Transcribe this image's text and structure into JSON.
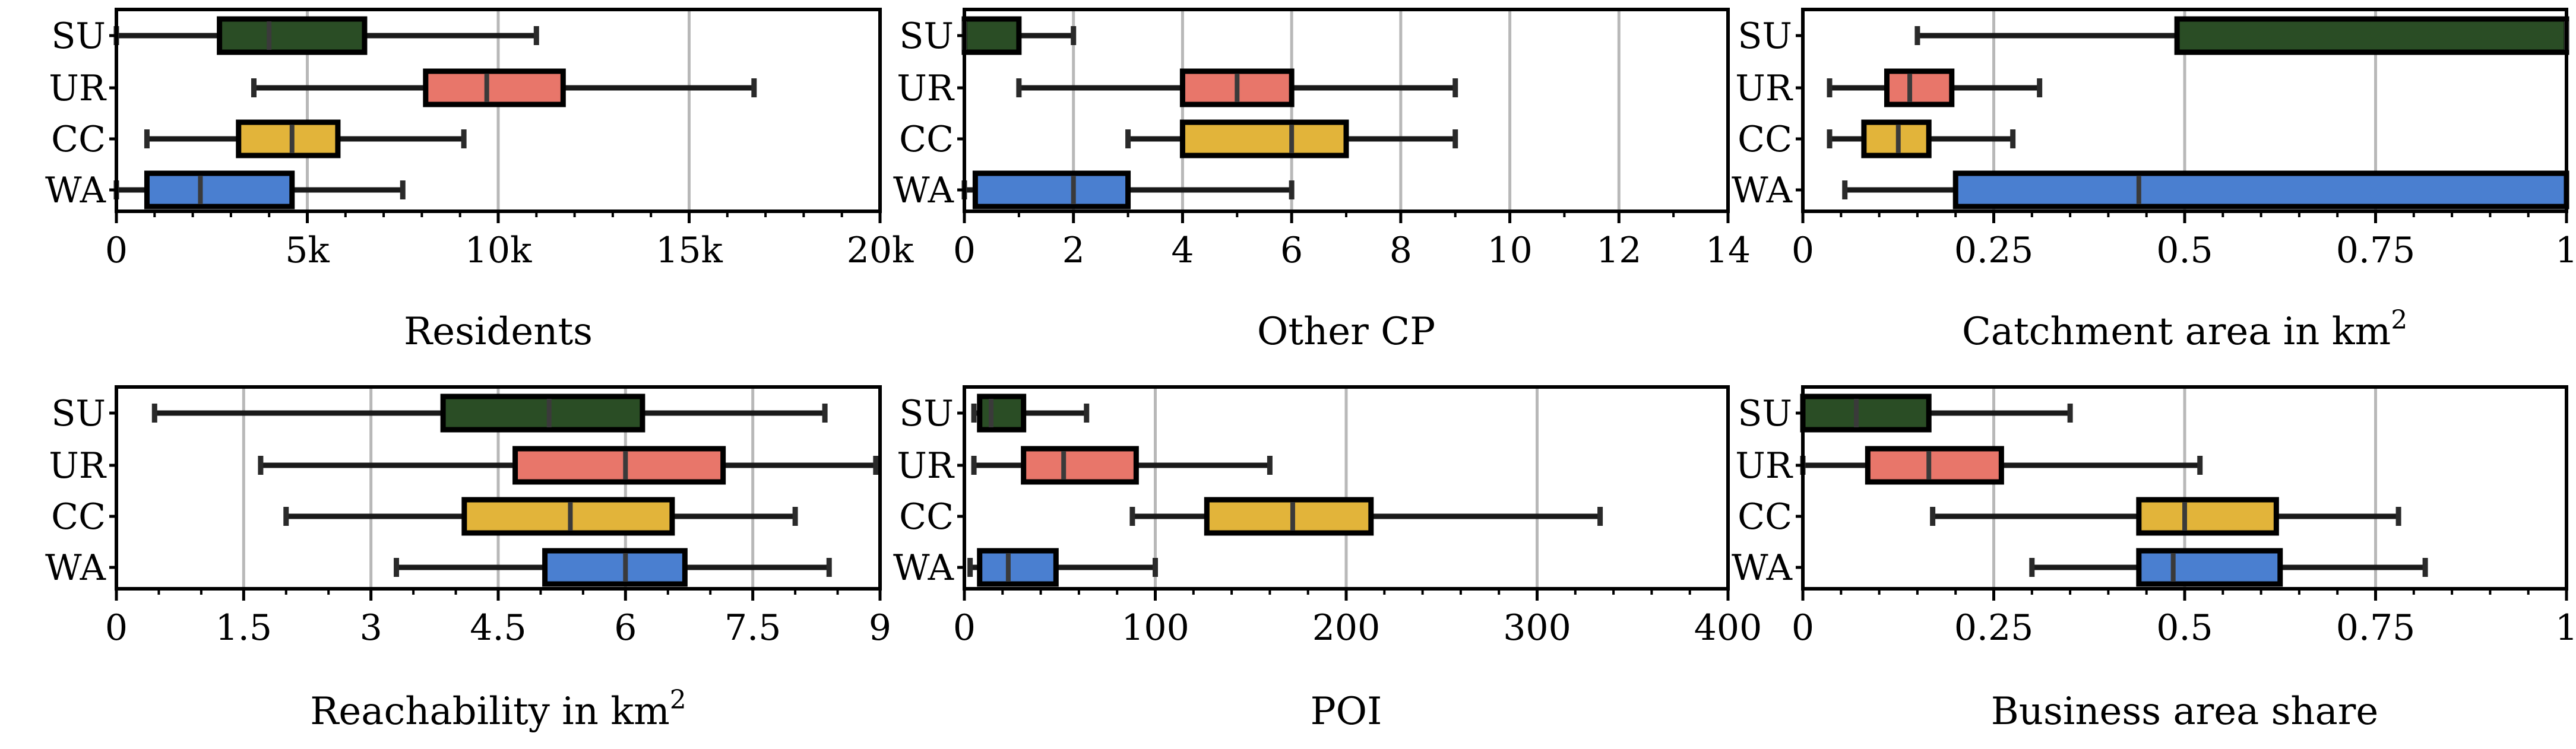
{
  "chart_data": [
    {
      "type": "boxplot",
      "xlabel": "Residents",
      "xlim": [
        0,
        20000
      ],
      "ticks": [
        0,
        5000,
        10000,
        15000,
        20000
      ],
      "tick_labels": [
        "0",
        "5k",
        "10k",
        "15k",
        "20k"
      ],
      "minor_step": 1000,
      "grid": true,
      "categories": [
        "SU",
        "UR",
        "CC",
        "WA"
      ],
      "boxes": [
        {
          "name": "SU",
          "whisker_low": 0,
          "q1": 2700,
          "median": 4000,
          "q3": 6500,
          "whisker_high": 11000
        },
        {
          "name": "UR",
          "whisker_low": 3600,
          "q1": 8100,
          "median": 9700,
          "q3": 11700,
          "whisker_high": 16700
        },
        {
          "name": "CC",
          "whisker_low": 800,
          "q1": 3200,
          "median": 4600,
          "q3": 5800,
          "whisker_high": 9100
        },
        {
          "name": "WA",
          "whisker_low": 0,
          "q1": 800,
          "median": 2200,
          "q3": 4600,
          "whisker_high": 7500
        }
      ]
    },
    {
      "type": "boxplot",
      "xlabel": "Other CP",
      "xlim": [
        0,
        14
      ],
      "ticks": [
        0,
        2,
        4,
        6,
        8,
        10,
        12,
        14
      ],
      "tick_labels": [
        "0",
        "2",
        "4",
        "6",
        "8",
        "10",
        "12",
        "14"
      ],
      "minor_step": 1,
      "grid": true,
      "categories": [
        "SU",
        "UR",
        "CC",
        "WA"
      ],
      "boxes": [
        {
          "name": "SU",
          "whisker_low": 0,
          "q1": 0,
          "median": 0,
          "q3": 1,
          "whisker_high": 2
        },
        {
          "name": "UR",
          "whisker_low": 1,
          "q1": 4,
          "median": 5,
          "q3": 6,
          "whisker_high": 9
        },
        {
          "name": "CC",
          "whisker_low": 3,
          "q1": 4,
          "median": 6,
          "q3": 7,
          "whisker_high": 9
        },
        {
          "name": "WA",
          "whisker_low": 0,
          "q1": 0.2,
          "median": 2,
          "q3": 3,
          "whisker_high": 6
        }
      ]
    },
    {
      "type": "boxplot",
      "xlabel": "Catchment area in km",
      "xlabel_sup": "2",
      "xlim": [
        0,
        1
      ],
      "ticks": [
        0,
        0.25,
        0.5,
        0.75,
        1
      ],
      "tick_labels": [
        "0",
        "0.25",
        "0.5",
        "0.75",
        "1"
      ],
      "minor_step": 0.05,
      "grid": true,
      "categories": [
        "SU",
        "UR",
        "CC",
        "WA"
      ],
      "boxes": [
        {
          "name": "SU",
          "whisker_low": 0.15,
          "q1": 0.49,
          "median": 1.0,
          "q3": 1.0,
          "whisker_high": 1.0
        },
        {
          "name": "UR",
          "whisker_low": 0.035,
          "q1": 0.11,
          "median": 0.14,
          "q3": 0.195,
          "whisker_high": 0.31
        },
        {
          "name": "CC",
          "whisker_low": 0.035,
          "q1": 0.08,
          "median": 0.125,
          "q3": 0.165,
          "whisker_high": 0.275
        },
        {
          "name": "WA",
          "whisker_low": 0.055,
          "q1": 0.2,
          "median": 0.44,
          "q3": 1.0,
          "whisker_high": 1.0
        }
      ]
    },
    {
      "type": "boxplot",
      "xlabel": "Reachability in km",
      "xlabel_sup": "2",
      "xlim": [
        0,
        9
      ],
      "ticks": [
        0,
        1.5,
        3,
        4.5,
        6,
        7.5,
        9
      ],
      "tick_labels": [
        "0",
        "1.5",
        "3",
        "4.5",
        "6",
        "7.5",
        "9"
      ],
      "minor_step": 0.5,
      "grid": true,
      "categories": [
        "SU",
        "UR",
        "CC",
        "WA"
      ],
      "boxes": [
        {
          "name": "SU",
          "whisker_low": 0.45,
          "q1": 3.85,
          "median": 5.1,
          "q3": 6.2,
          "whisker_high": 8.35
        },
        {
          "name": "UR",
          "whisker_low": 1.7,
          "q1": 4.7,
          "median": 6.0,
          "q3": 7.15,
          "whisker_high": 8.95
        },
        {
          "name": "CC",
          "whisker_low": 2.0,
          "q1": 4.1,
          "median": 5.35,
          "q3": 6.55,
          "whisker_high": 8.0
        },
        {
          "name": "WA",
          "whisker_low": 3.3,
          "q1": 5.05,
          "median": 6.0,
          "q3": 6.7,
          "whisker_high": 8.4
        }
      ]
    },
    {
      "type": "boxplot",
      "xlabel": "POI",
      "xlim": [
        0,
        400
      ],
      "ticks": [
        0,
        100,
        200,
        300,
        400
      ],
      "tick_labels": [
        "0",
        "100",
        "200",
        "300",
        "400"
      ],
      "minor_step": 20,
      "grid": true,
      "categories": [
        "SU",
        "UR",
        "CC",
        "WA"
      ],
      "boxes": [
        {
          "name": "SU",
          "whisker_low": 5,
          "q1": 8,
          "median": 14,
          "q3": 31,
          "whisker_high": 64
        },
        {
          "name": "UR",
          "whisker_low": 5,
          "q1": 31,
          "median": 52,
          "q3": 90,
          "whisker_high": 160
        },
        {
          "name": "CC",
          "whisker_low": 88,
          "q1": 127,
          "median": 172,
          "q3": 213,
          "whisker_high": 333
        },
        {
          "name": "WA",
          "whisker_low": 3,
          "q1": 8,
          "median": 23,
          "q3": 48,
          "whisker_high": 100
        }
      ]
    },
    {
      "type": "boxplot",
      "xlabel": "Business area share",
      "xlim": [
        0,
        1
      ],
      "ticks": [
        0,
        0.25,
        0.5,
        0.75,
        1
      ],
      "tick_labels": [
        "0",
        "0.25",
        "0.5",
        "0.75",
        "1"
      ],
      "minor_step": 0.05,
      "grid": true,
      "categories": [
        "SU",
        "UR",
        "CC",
        "WA"
      ],
      "boxes": [
        {
          "name": "SU",
          "whisker_low": 0,
          "q1": 0,
          "median": 0.07,
          "q3": 0.165,
          "whisker_high": 0.35
        },
        {
          "name": "UR",
          "whisker_low": 0,
          "q1": 0.085,
          "median": 0.165,
          "q3": 0.26,
          "whisker_high": 0.52
        },
        {
          "name": "CC",
          "whisker_low": 0.17,
          "q1": 0.44,
          "median": 0.5,
          "q3": 0.62,
          "whisker_high": 0.78
        },
        {
          "name": "WA",
          "whisker_low": 0.3,
          "q1": 0.44,
          "median": 0.485,
          "q3": 0.625,
          "whisker_high": 0.815
        }
      ]
    }
  ],
  "colors": {
    "SU": "#2a4d25",
    "UR": "#e8766a",
    "CC": "#e2b43a",
    "WA": "#4a7fd0",
    "grid": "#b8b8b8",
    "outline": "#000000"
  }
}
